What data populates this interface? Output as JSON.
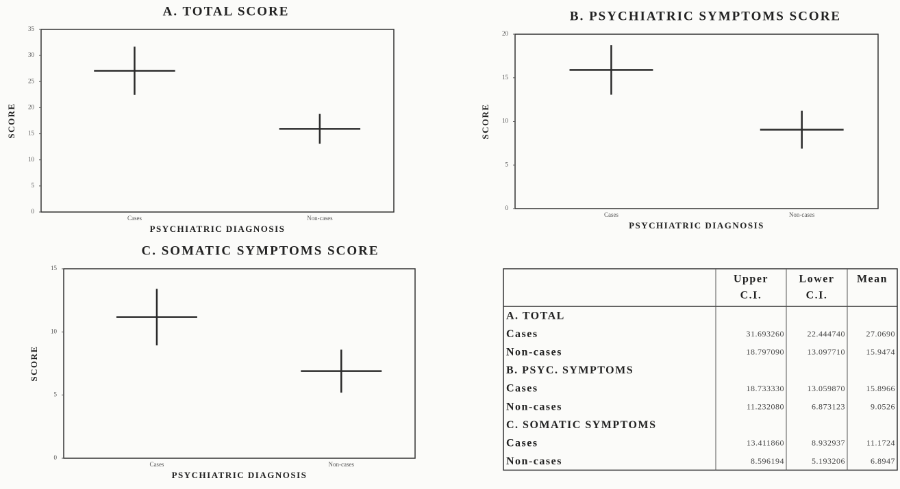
{
  "chart_data": [
    {
      "type": "errorcross",
      "title": "A.   TOTAL SCORE",
      "y_label": "SCORE",
      "x_label": "PSYCHIATRIC DIAGNOSIS",
      "categories": [
        "Cases",
        "Non-cases"
      ],
      "values": [
        27.069,
        15.9474
      ],
      "upper": [
        31.69326,
        18.79709
      ],
      "lower": [
        22.44474,
        13.09771
      ],
      "ylim": [
        0,
        35
      ],
      "yticks": [
        0,
        5,
        10,
        15,
        20,
        25,
        30,
        35
      ],
      "color": "#2a2a2a"
    },
    {
      "type": "errorcross",
      "title": "B.   PSYCHIATRIC SYMPTOMS SCORE",
      "y_label": "SCORE",
      "x_label": "PSYCHIATRIC DIAGNOSIS",
      "categories": [
        "Cases",
        "Non-cases"
      ],
      "values": [
        15.8966,
        9.0526
      ],
      "upper": [
        18.73333,
        11.23208
      ],
      "lower": [
        13.05987,
        6.873123
      ],
      "ylim": [
        0,
        20
      ],
      "yticks": [
        0,
        5,
        10,
        15,
        20
      ],
      "color": "#2a2a2a"
    },
    {
      "type": "errorcross",
      "title": "C.   SOMATIC SYMPTOMS SCORE",
      "y_label": "SCORE",
      "x_label": "PSYCHIATRIC DIAGNOSIS",
      "categories": [
        "Cases",
        "Non-cases"
      ],
      "values": [
        11.1724,
        6.8947
      ],
      "upper": [
        13.41186,
        8.596194
      ],
      "lower": [
        8.932937,
        5.193206
      ],
      "ylim": [
        0,
        15
      ],
      "yticks": [
        0,
        5,
        10,
        15
      ],
      "color": "#2a2a2a"
    }
  ],
  "table": {
    "columns": [
      [
        "Upper",
        "C.I."
      ],
      [
        "Lower",
        "C.I."
      ],
      [
        "Mean"
      ]
    ],
    "sections": [
      {
        "title": "A. TOTAL",
        "rows": [
          {
            "label": "Cases",
            "cells": [
              "31.693260",
              "22.444740",
              "27.0690"
            ]
          },
          {
            "label": "Non-cases",
            "cells": [
              "18.797090",
              "13.097710",
              "15.9474"
            ]
          }
        ]
      },
      {
        "title": "B. PSYC. SYMPTOMS",
        "rows": [
          {
            "label": "Cases",
            "cells": [
              "18.733330",
              "13.059870",
              "15.8966"
            ]
          },
          {
            "label": "Non-cases",
            "cells": [
              "11.232080",
              "6.873123",
              "9.0526"
            ]
          }
        ]
      },
      {
        "title": "C. SOMATIC SYMPTOMS",
        "rows": [
          {
            "label": "Cases",
            "cells": [
              "13.411860",
              "8.932937",
              "11.1724"
            ]
          },
          {
            "label": "Non-cases",
            "cells": [
              "8.596194",
              "5.193206",
              "6.8947"
            ]
          }
        ]
      }
    ]
  }
}
